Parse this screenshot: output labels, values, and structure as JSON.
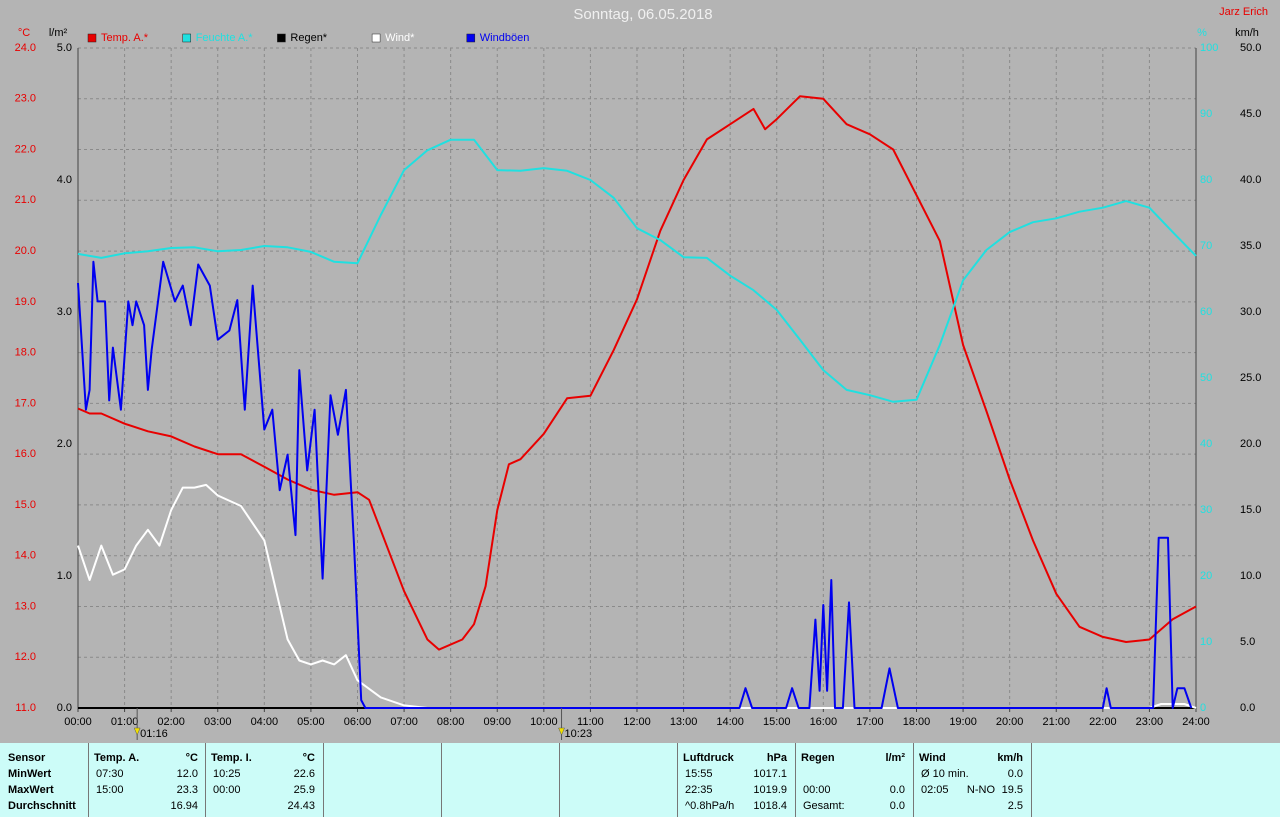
{
  "chart_data": {
    "type": "line",
    "title": "Sonntag, 06.05.2018",
    "author": "Jarz Erich",
    "y_label": "°C",
    "y2_label": "%",
    "y3_label": "l/m²",
    "y4_label": "km/h",
    "xlim": [
      0,
      24
    ],
    "xticks": [
      {
        "value": 0,
        "label": "00:00"
      },
      {
        "value": 1,
        "label": "01:00"
      },
      {
        "value": 2,
        "label": "02:00"
      },
      {
        "value": 3,
        "label": "03:00"
      },
      {
        "value": 4,
        "label": "04:00"
      },
      {
        "value": 5,
        "label": "05:00"
      },
      {
        "value": 6,
        "label": "06:00"
      },
      {
        "value": 7,
        "label": "07:00"
      },
      {
        "value": 8,
        "label": "08:00"
      },
      {
        "value": 9,
        "label": "09:00"
      },
      {
        "value": 10,
        "label": "10:00"
      },
      {
        "value": 11,
        "label": "11:00"
      },
      {
        "value": 12,
        "label": "12:00"
      },
      {
        "value": 13,
        "label": "13:00"
      },
      {
        "value": 14,
        "label": "14:00"
      },
      {
        "value": 15,
        "label": "15:00"
      },
      {
        "value": 16,
        "label": "16:00"
      },
      {
        "value": 17,
        "label": "17:00"
      },
      {
        "value": 18,
        "label": "18:00"
      },
      {
        "value": 19,
        "label": "19:00"
      },
      {
        "value": 20,
        "label": "20:00"
      },
      {
        "value": 21,
        "label": "21:00"
      },
      {
        "value": 22,
        "label": "22:00"
      },
      {
        "value": 23,
        "label": "23:00"
      },
      {
        "value": 24,
        "label": "24:00"
      }
    ],
    "ylim": [
      11,
      24
    ],
    "yticks": [
      {
        "value": 11,
        "label": "11.0"
      },
      {
        "value": 12,
        "label": "12.0"
      },
      {
        "value": 13,
        "label": "13.0"
      },
      {
        "value": 14,
        "label": "14.0"
      },
      {
        "value": 15,
        "label": "15.0"
      },
      {
        "value": 16,
        "label": "16.0"
      },
      {
        "value": 17,
        "label": "17.0"
      },
      {
        "value": 18,
        "label": "18.0"
      },
      {
        "value": 19,
        "label": "19.0"
      },
      {
        "value": 20,
        "label": "20.0"
      },
      {
        "value": 21,
        "label": "21.0"
      },
      {
        "value": 22,
        "label": "22.0"
      },
      {
        "value": 23,
        "label": "23.0"
      },
      {
        "value": 24,
        "label": "24.0"
      }
    ],
    "y2lim": [
      0,
      100
    ],
    "y2ticks": [
      0,
      10,
      20,
      30,
      40,
      50,
      60,
      70,
      80,
      90,
      100
    ],
    "y3lim": [
      0,
      5
    ],
    "y3ticks": [
      {
        "value": 0,
        "label": "0.0"
      },
      {
        "value": 1,
        "label": "1.0"
      },
      {
        "value": 2,
        "label": "2.0"
      },
      {
        "value": 3,
        "label": "3.0"
      },
      {
        "value": 4,
        "label": "4.0"
      },
      {
        "value": 5,
        "label": "5.0"
      }
    ],
    "y4lim": [
      0,
      50
    ],
    "y4ticks": [
      {
        "value": 0,
        "label": "0.0"
      },
      {
        "value": 5,
        "label": "5.0"
      },
      {
        "value": 10,
        "label": "10.0"
      },
      {
        "value": 15,
        "label": "15.0"
      },
      {
        "value": 20,
        "label": "20.0"
      },
      {
        "value": 25,
        "label": "25.0"
      },
      {
        "value": 30,
        "label": "30.0"
      },
      {
        "value": 35,
        "label": "35.0"
      },
      {
        "value": 40,
        "label": "40.0"
      },
      {
        "value": 45,
        "label": "45.0"
      },
      {
        "value": 50,
        "label": "50.0"
      }
    ],
    "grid": true,
    "series": [
      {
        "name": "Temp. A.*",
        "color": "#e80000",
        "axis": "y",
        "x": [
          0,
          0.25,
          0.5,
          1,
          1.5,
          2,
          2.5,
          3,
          3.5,
          4,
          4.5,
          5,
          5.5,
          6,
          6.25,
          6.5,
          7,
          7.5,
          7.75,
          8.25,
          8.5,
          8.75,
          9,
          9.25,
          9.5,
          10,
          10.5,
          11,
          11.5,
          12,
          12.5,
          13,
          13.5,
          14,
          14.5,
          14.75,
          15,
          15.5,
          16,
          16.5,
          17,
          17.5,
          18,
          18.5,
          19,
          19.5,
          20,
          20.5,
          21,
          21.5,
          22,
          22.5,
          23,
          23.5,
          24
        ],
        "values": [
          16.9,
          16.8,
          16.8,
          16.6,
          16.45,
          16.35,
          16.15,
          16,
          16,
          15.75,
          15.5,
          15.3,
          15.2,
          15.25,
          15.1,
          14.5,
          13.3,
          12.35,
          12.15,
          12.35,
          12.65,
          13.4,
          14.9,
          15.8,
          15.9,
          16.4,
          17.1,
          17.15,
          18.05,
          19.05,
          20.4,
          21.4,
          22.2,
          22.5,
          22.8,
          22.4,
          22.6,
          23.05,
          23.0,
          22.5,
          22.3,
          22.0,
          21.1,
          20.2,
          18.15,
          16.85,
          15.5,
          14.3,
          13.25,
          12.6,
          12.4,
          12.3,
          12.35,
          12.75,
          13.0
        ]
      },
      {
        "name": "Feuchte A.*",
        "color": "#20e0e0",
        "axis": "y2",
        "x": [
          0,
          0.5,
          1,
          1.5,
          2,
          2.5,
          3,
          3.5,
          4,
          4.5,
          5,
          5.5,
          6,
          6.5,
          7,
          7.5,
          8,
          8.5,
          9,
          9.5,
          10,
          10.5,
          11,
          11.5,
          12,
          12.5,
          13,
          13.5,
          14,
          14.5,
          15,
          15.5,
          16,
          16.5,
          17,
          17.5,
          18,
          18.5,
          19,
          19.5,
          20,
          20.5,
          21,
          21.5,
          22,
          22.5,
          23,
          23.5,
          24
        ],
        "values": [
          68.8,
          68.2,
          68.9,
          69.2,
          69.7,
          69.8,
          69.2,
          69.4,
          70,
          69.8,
          69.1,
          67.6,
          67.4,
          74.7,
          81.5,
          84.5,
          86.1,
          86.1,
          81.5,
          81.4,
          81.8,
          81.4,
          80,
          77.3,
          72.7,
          70.9,
          68.3,
          68.2,
          65.5,
          63.3,
          60.3,
          55.8,
          51.2,
          48.2,
          47.4,
          46.4,
          46.7,
          55,
          64.8,
          69.4,
          72.1,
          73.6,
          74.2,
          75.2,
          75.8,
          76.8,
          75.8,
          72.1,
          68.5
        ]
      },
      {
        "name": "Regen*",
        "color": "#000000",
        "axis": "y3",
        "x": [
          0,
          24
        ],
        "values": [
          0,
          0
        ]
      },
      {
        "name": "Wind*",
        "color": "#ffffff",
        "axis": "y4",
        "x": [
          0,
          0.25,
          0.5,
          0.75,
          1,
          1.25,
          1.5,
          1.75,
          2,
          2.25,
          2.5,
          2.75,
          3,
          3.5,
          4,
          4.25,
          4.5,
          4.75,
          5,
          5.25,
          5.5,
          5.75,
          6,
          6.5,
          7,
          7.5,
          23,
          23.25,
          23.75,
          24
        ],
        "values": [
          12.3,
          9.7,
          12.3,
          10.1,
          10.5,
          12.3,
          13.5,
          12.3,
          15,
          16.7,
          16.7,
          16.9,
          16.1,
          15.3,
          12.7,
          8.9,
          5.2,
          3.6,
          3.3,
          3.6,
          3.3,
          4,
          2.1,
          0.8,
          0.2,
          0,
          0,
          0.3,
          0.3,
          0
        ]
      },
      {
        "name": "Windböen",
        "color": "#0000f0",
        "axis": "y4",
        "x": [
          0,
          0.17,
          0.25,
          0.33,
          0.42,
          0.58,
          0.67,
          0.75,
          0.92,
          1.08,
          1.17,
          1.25,
          1.42,
          1.5,
          1.58,
          1.83,
          2.08,
          2.25,
          2.42,
          2.58,
          2.83,
          3,
          3.25,
          3.42,
          3.58,
          3.75,
          4,
          4.17,
          4.33,
          4.5,
          4.67,
          4.75,
          4.92,
          5.08,
          5.25,
          5.42,
          5.58,
          5.75,
          5.92,
          6.08,
          6.17,
          14.2,
          14.33,
          14.47,
          15.2,
          15.33,
          15.47,
          15.7,
          15.83,
          15.92,
          16,
          16.08,
          16.17,
          16.25,
          16.42,
          16.55,
          16.67,
          16.83,
          17.25,
          17.42,
          17.6,
          22,
          22.08,
          22.17,
          23.08,
          23.2,
          23.4,
          23.5,
          23.6,
          23.75,
          23.9
        ],
        "values": [
          32.2,
          22.6,
          24.1,
          33.8,
          30.8,
          30.8,
          23.3,
          27.3,
          22.6,
          30.8,
          29,
          30.8,
          29,
          24.1,
          27.1,
          33.8,
          30.8,
          32,
          29,
          33.6,
          32,
          27.9,
          28.6,
          30.9,
          22.6,
          32,
          21.1,
          22.6,
          16.5,
          19.2,
          13.1,
          25.6,
          18,
          22.6,
          9.8,
          23.7,
          20.7,
          24.1,
          12.7,
          0.6,
          0,
          0,
          1.5,
          0,
          0,
          1.5,
          0,
          0,
          6.7,
          1.3,
          7.8,
          1.3,
          9.7,
          0,
          0,
          8,
          0,
          0,
          0,
          3,
          0,
          0,
          1.5,
          0,
          0,
          12.9,
          12.9,
          0,
          1.5,
          1.5,
          0
        ]
      }
    ],
    "annotations": [
      {
        "x": 1.27,
        "label": "01:16"
      },
      {
        "x": 10.38,
        "label": "10:23"
      }
    ]
  },
  "stats": {
    "header": "Sensor",
    "row_labels": [
      "MinWert",
      "MaxWert",
      "Durchschnitt"
    ],
    "columns": [
      {
        "title": "Temp. A.",
        "unit": "°C",
        "rows": [
          {
            "time": "07:30",
            "value": "12.0"
          },
          {
            "time": "15:00",
            "value": "23.3"
          },
          {
            "value": "16.94"
          }
        ]
      },
      {
        "title": "Temp. I.",
        "unit": "°C",
        "rows": [
          {
            "time": "10:25",
            "value": "22.6"
          },
          {
            "time": "00:00",
            "value": "25.9"
          },
          {
            "value": "24.43"
          }
        ]
      },
      {
        "title": "Luftdruck",
        "unit": "hPa",
        "rows": [
          {
            "time": "15:55",
            "value": "1017.1"
          },
          {
            "time": "22:35",
            "value": "1019.9"
          },
          {
            "time": "^0.8hPa/h",
            "value": "1018.4"
          }
        ]
      },
      {
        "title": "Regen",
        "unit": "l/m²",
        "rows": [
          null,
          {
            "time": "00:00",
            "value": "0.0"
          },
          {
            "time": "Gesamt:",
            "value": "0.0"
          }
        ]
      },
      {
        "title": "Wind",
        "unit": "km/h",
        "rows": [
          {
            "time": "Ø 10 min.",
            "value": "0.0"
          },
          {
            "time": "02:05",
            "extra": "N-NO",
            "value": "19.5"
          },
          {
            "value": "2.5"
          }
        ]
      }
    ]
  }
}
